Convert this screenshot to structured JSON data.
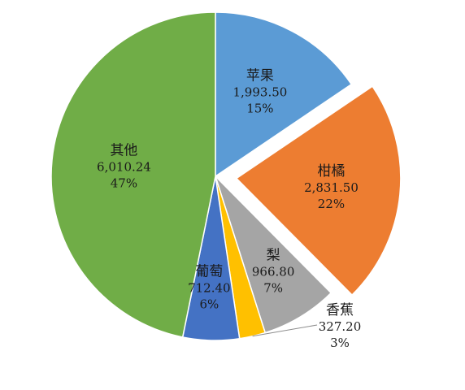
{
  "chart_data": {
    "type": "pie",
    "title": "",
    "legend": "none",
    "slices": [
      {
        "name": "苹果",
        "value": 1993.5,
        "value_label": "1,993.50",
        "percent_label": "15%",
        "color": "#5b9bd5",
        "exploded": false
      },
      {
        "name": "柑橘",
        "value": 2831.5,
        "value_label": "2,831.50",
        "percent_label": "22%",
        "color": "#ed7d31",
        "exploded": true
      },
      {
        "name": "梨",
        "value": 966.8,
        "value_label": "966.80",
        "percent_label": "7%",
        "color": "#a5a5a5",
        "exploded": false
      },
      {
        "name": "香蕉",
        "value": 327.2,
        "value_label": "327.20",
        "percent_label": "3%",
        "color": "#ffc000",
        "exploded": false
      },
      {
        "name": "葡萄",
        "value": 712.4,
        "value_label": "712.40",
        "percent_label": "6%",
        "color": "#4472c4",
        "exploded": false
      },
      {
        "name": "其他",
        "value": 6010.24,
        "value_label": "6,010.24",
        "percent_label": "47%",
        "color": "#70ad47",
        "exploded": false
      }
    ]
  }
}
